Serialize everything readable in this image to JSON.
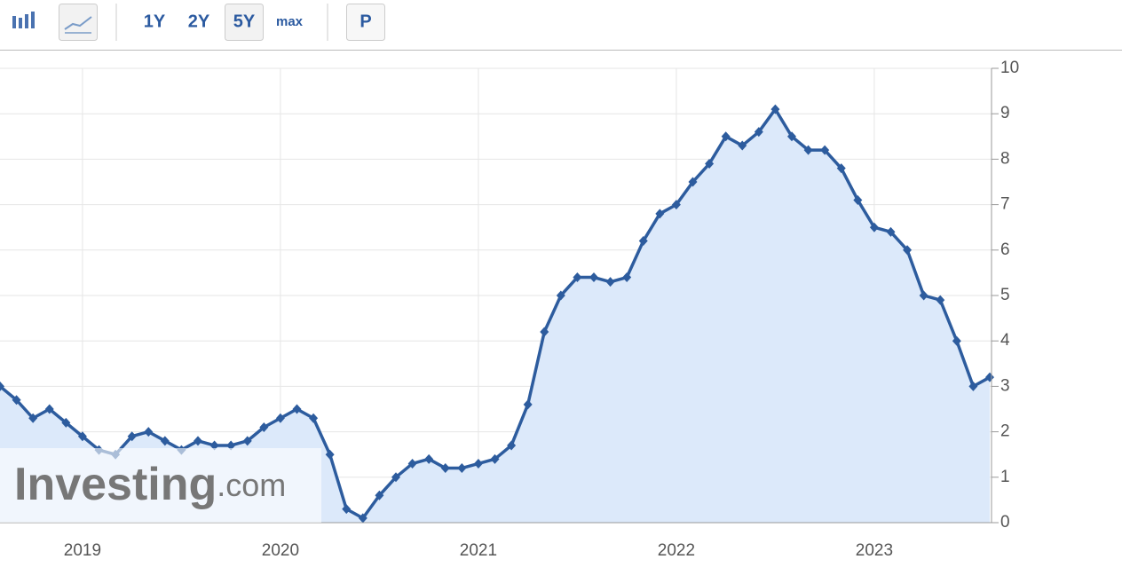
{
  "toolbar": {
    "buttons": [
      "1Y",
      "2Y",
      "5Y",
      "max",
      "P"
    ]
  },
  "watermark": {
    "brand": "Investing",
    "suffix": ".com"
  },
  "chart_data": {
    "type": "area",
    "categories": [
      null,
      null,
      null,
      null,
      null,
      "2019",
      null,
      null,
      null,
      null,
      null,
      null,
      null,
      null,
      null,
      null,
      null,
      "2020",
      null,
      null,
      null,
      null,
      null,
      null,
      null,
      null,
      null,
      null,
      null,
      "2021",
      null,
      null,
      null,
      null,
      null,
      null,
      null,
      null,
      null,
      null,
      null,
      "2022",
      null,
      null,
      null,
      null,
      null,
      null,
      null,
      null,
      null,
      null,
      null,
      "2023",
      null,
      null,
      null,
      null,
      null,
      null,
      null
    ],
    "values": [
      3.0,
      2.7,
      2.3,
      2.5,
      2.2,
      1.9,
      1.6,
      1.5,
      1.9,
      2.0,
      1.8,
      1.6,
      1.8,
      1.7,
      1.7,
      1.8,
      2.1,
      2.3,
      2.5,
      2.3,
      1.5,
      0.3,
      0.1,
      0.6,
      1.0,
      1.3,
      1.4,
      1.2,
      1.2,
      1.3,
      1.4,
      1.7,
      2.6,
      4.2,
      5.0,
      5.4,
      5.4,
      5.3,
      5.4,
      6.2,
      6.8,
      7.0,
      7.5,
      7.9,
      8.5,
      8.3,
      8.6,
      9.1,
      8.5,
      8.2,
      8.2,
      7.8,
      7.1,
      6.5,
      6.4,
      6.0,
      5.0,
      4.9,
      4.0,
      3.0,
      3.2
    ],
    "color": "#2d5c9e",
    "ylim": [
      0,
      10
    ],
    "yticks": [
      0,
      1,
      2,
      3,
      4,
      5,
      6,
      7,
      8,
      9,
      10
    ],
    "grid": true
  }
}
